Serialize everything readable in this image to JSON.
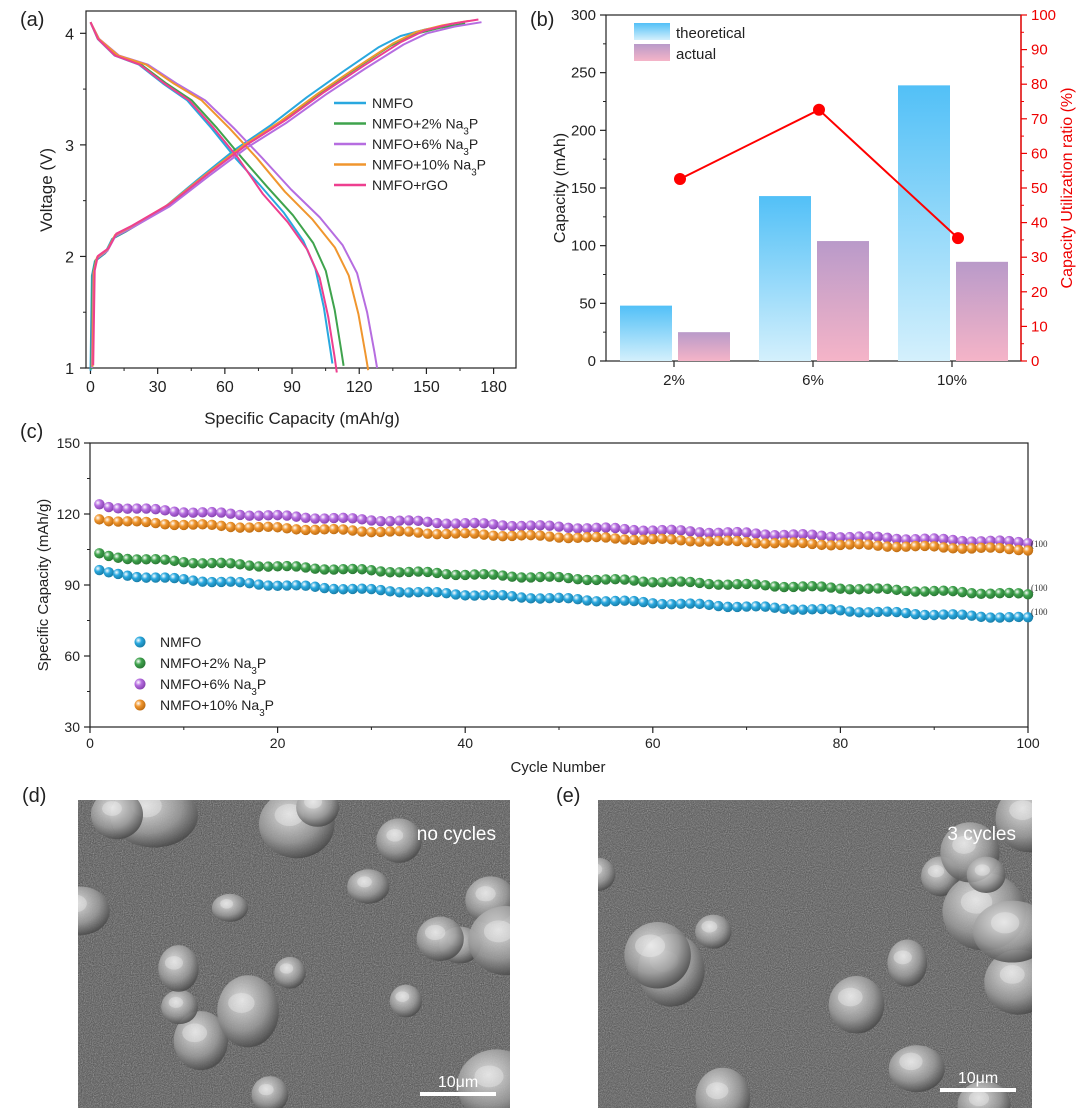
{
  "panels": {
    "a": {
      "label": "(a)"
    },
    "b": {
      "label": "(b)"
    },
    "c": {
      "label": "(c)"
    },
    "d": {
      "label": "(d)",
      "caption": "no cycles",
      "scale_bar": "10μm"
    },
    "e": {
      "label": "(e)",
      "caption": "3 cycles",
      "scale_bar": "10μm"
    }
  },
  "colors": {
    "NMFO": "#29a8df",
    "Na2": "#3fa34d",
    "Na6": "#b66de0",
    "Na10": "#f0962e",
    "rGO": "#ee3f8f",
    "ratio": "#ff0000",
    "theoretical": "#58c4f6",
    "actual": "#cfa3c8"
  },
  "chart_data": [
    {
      "id": "a",
      "type": "line",
      "xlabel": "Specific Capacity (mAh/g)",
      "ylabel": "Voltage (V)",
      "xlim": [
        -2,
        190
      ],
      "ylim": [
        1,
        4.2
      ],
      "xticks": [
        "0",
        "30",
        "60",
        "90",
        "120",
        "150",
        "180"
      ],
      "yticks": [
        "1",
        "2",
        "3",
        "4"
      ],
      "legend": [
        "NMFO",
        "NMFO+2% Na3P",
        "NMFO+6% Na3P",
        "NMFO+10% Na3P",
        "NMFO+rGO"
      ],
      "series": [
        {
          "name": "NMFO",
          "charge_end": 161,
          "discharge_end": 108,
          "color_key": "NMFO"
        },
        {
          "name": "NMFO+2% Na3P",
          "charge_end": 167,
          "discharge_end": 113,
          "color_key": "Na2"
        },
        {
          "name": "NMFO+6% Na3P",
          "charge_end": 174,
          "discharge_end": 128,
          "color_key": "Na6"
        },
        {
          "name": "NMFO+10% Na3P",
          "charge_end": 168,
          "discharge_end": 124,
          "color_key": "Na10"
        },
        {
          "name": "NMFO+rGO",
          "charge_end": 172,
          "discharge_end": 110,
          "color_key": "rGO"
        }
      ]
    },
    {
      "id": "b",
      "type": "bar",
      "categories": [
        "2%",
        "6%",
        "10%"
      ],
      "ylabel": "Capacity (mAh)",
      "y2label": "Capacity Utilization ratio (%)",
      "ylim": [
        0,
        300
      ],
      "y2lim": [
        0,
        100
      ],
      "yticks": [
        "0",
        "50",
        "100",
        "150",
        "200",
        "250",
        "300"
      ],
      "y2ticks": [
        "0",
        "10",
        "20",
        "30",
        "40",
        "50",
        "60",
        "70",
        "80",
        "90",
        "100"
      ],
      "series": [
        {
          "name": "theoretical",
          "values": [
            48,
            143,
            239
          ]
        },
        {
          "name": "actual",
          "values": [
            25,
            104,
            86
          ]
        }
      ],
      "ratio": {
        "name": "Capacity Utilization ratio",
        "values": [
          52.6,
          72.6,
          35.5
        ]
      }
    },
    {
      "id": "c",
      "type": "scatter",
      "xlabel": "Cycle Number",
      "ylabel": "Specific Capacity (mAh/g)",
      "xlim": [
        0,
        100
      ],
      "ylim": [
        30,
        150
      ],
      "xticks": [
        "0",
        "20",
        "40",
        "60",
        "80",
        "100"
      ],
      "yticks": [
        "30",
        "60",
        "90",
        "120",
        "150"
      ],
      "end_labels": [
        "(100",
        "(100",
        "(100"
      ],
      "series": [
        {
          "name": "NMFO",
          "start": 96,
          "end": 76,
          "color_key": "NMFO"
        },
        {
          "name": "NMFO+2% Na3P",
          "start": 103,
          "end": 86,
          "color_key": "Na2"
        },
        {
          "name": "NMFO+6% Na3P",
          "start": 124,
          "end": 108,
          "color_key": "Na6"
        },
        {
          "name": "NMFO+10% Na3P",
          "start": 118,
          "end": 105,
          "color_key": "Na10"
        }
      ]
    }
  ]
}
